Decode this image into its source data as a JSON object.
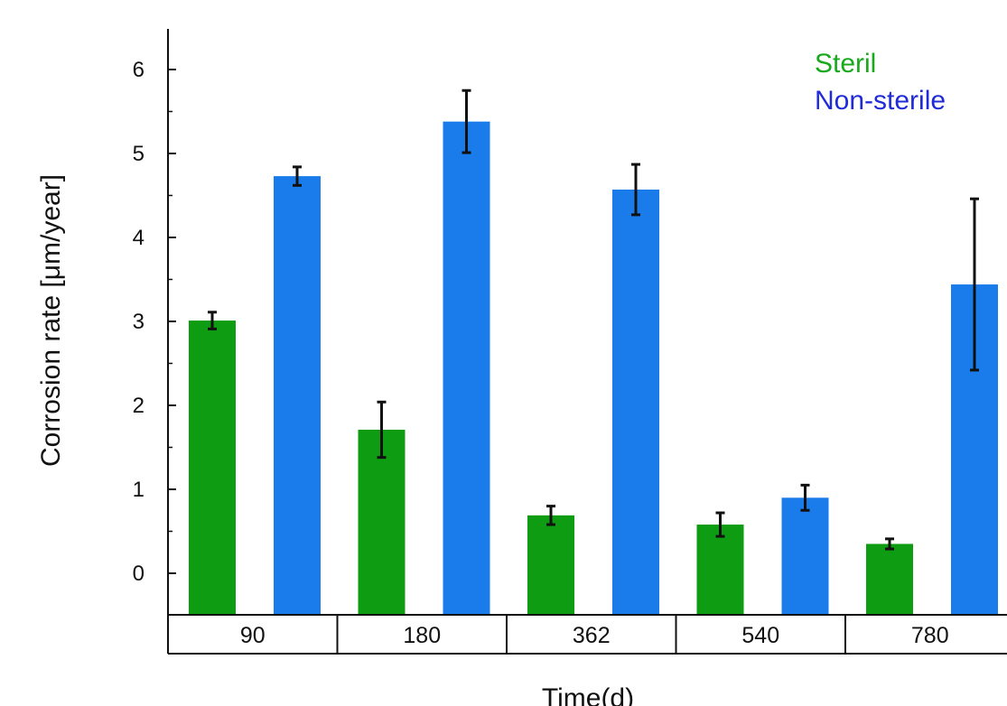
{
  "chart_data": {
    "type": "bar",
    "title": "",
    "xlabel": "Time(d)",
    "ylabel": "Corrosion rate [μm/year]",
    "ylim": [
      -0.5,
      6.5
    ],
    "yticks": [
      0,
      1,
      2,
      3,
      4,
      5,
      6
    ],
    "ytick_labels": [
      "0",
      "1",
      "2",
      "3",
      "4",
      "5",
      "6"
    ],
    "grid": false,
    "legend_position": "top-right",
    "categories": [
      "90",
      "180",
      "362",
      "540",
      "780"
    ],
    "series": [
      {
        "name": "Steril",
        "color": "#0e9c12",
        "values": [
          3.01,
          1.71,
          0.69,
          0.58,
          0.35
        ],
        "errors": [
          0.1,
          0.33,
          0.11,
          0.14,
          0.06
        ]
      },
      {
        "name": "Non-sterile",
        "color": "#1a7bea",
        "values": [
          4.73,
          5.38,
          4.57,
          0.9,
          3.44
        ],
        "errors": [
          0.11,
          0.37,
          0.3,
          0.15,
          1.02
        ]
      }
    ],
    "legend_colors": [
      "#18a91c",
      "#1f2bd6"
    ]
  }
}
